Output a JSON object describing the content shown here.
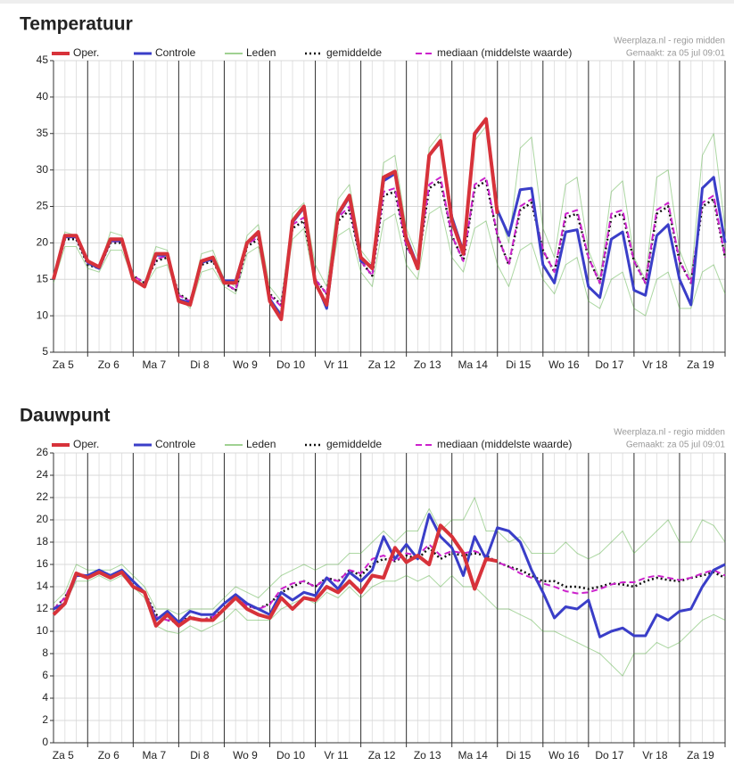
{
  "chart_data": [
    {
      "type": "line",
      "title": "Temperatuur",
      "source": "Weerplaza.nl - regio midden",
      "made": "Gemaakt: za 05 jul 09:01",
      "x": [
        0.25,
        0.5,
        0.75,
        1,
        1.25,
        1.5,
        1.75,
        2,
        2.25,
        2.5,
        2.75,
        3,
        3.25,
        3.5,
        3.75,
        4,
        4.25,
        4.5,
        4.75,
        5,
        5.25,
        5.5,
        5.75,
        6,
        6.25,
        6.5,
        6.75,
        7,
        7.25,
        7.5,
        7.75,
        8,
        8.25,
        8.5,
        8.75,
        9,
        9.25,
        9.5,
        9.75,
        10,
        10.25,
        10.5,
        10.75,
        11,
        11.25,
        11.5,
        11.75,
        12,
        12.25,
        12.5,
        12.75,
        13,
        13.25,
        13.5,
        13.75,
        14,
        14.25,
        14.5,
        14.75,
        15
      ],
      "xlim": [
        0.25,
        15
      ],
      "xticks": [
        {
          "value": 0.5,
          "label": "Za 5"
        },
        {
          "value": 1.5,
          "label": "Zo 6"
        },
        {
          "value": 2.5,
          "label": "Ma 7"
        },
        {
          "value": 3.5,
          "label": "Di 8"
        },
        {
          "value": 4.5,
          "label": "Wo 9"
        },
        {
          "value": 5.5,
          "label": "Do 10"
        },
        {
          "value": 6.5,
          "label": "Vr 11"
        },
        {
          "value": 7.5,
          "label": "Za 12"
        },
        {
          "value": 8.5,
          "label": "Zo 13"
        },
        {
          "value": 9.5,
          "label": "Ma 14"
        },
        {
          "value": 10.5,
          "label": "Di 15"
        },
        {
          "value": 11.5,
          "label": "Wo 16"
        },
        {
          "value": 12.5,
          "label": "Do 17"
        },
        {
          "value": 13.5,
          "label": "Vr 18"
        },
        {
          "value": 14.5,
          "label": "Za 19"
        }
      ],
      "ylim": [
        5,
        45
      ],
      "yticks": [
        5,
        10,
        15,
        20,
        25,
        30,
        35,
        40,
        45
      ],
      "grid": true,
      "series": [
        {
          "name": "Oper.",
          "color": "#d7323a",
          "values": [
            15,
            21,
            21,
            17.5,
            16.7,
            20.5,
            20.5,
            15,
            14,
            18.5,
            18.5,
            12,
            11.5,
            17.5,
            18,
            14.5,
            14.5,
            20,
            21.5,
            12,
            9.5,
            23,
            25,
            14.5,
            11.5,
            24,
            26.5,
            18,
            16.5,
            29,
            29.8,
            20.5,
            16.5,
            32,
            34,
            23,
            18.5,
            35,
            37,
            24,
            null,
            null,
            null,
            null,
            null,
            null,
            null,
            null,
            null,
            null,
            null,
            null,
            null,
            null,
            null,
            null,
            null,
            null,
            null,
            null
          ]
        },
        {
          "name": "Controle",
          "color": "#3a3ec8",
          "values": [
            15,
            20.8,
            20.8,
            17.3,
            16.5,
            20.3,
            20.3,
            15,
            14,
            18.3,
            18.3,
            12.2,
            11.8,
            17.3,
            17.8,
            14.8,
            14.8,
            20,
            21.3,
            12.3,
            10,
            22.8,
            24.8,
            14.8,
            11,
            23.8,
            26.3,
            17.5,
            16.8,
            28.5,
            29.5,
            20.8,
            16.8,
            32,
            33.8,
            23.5,
            18.8,
            34.8,
            37,
            24.5,
            21,
            27.3,
            27.5,
            17,
            14.5,
            21.5,
            21.8,
            14,
            12.5,
            20.5,
            21.5,
            13.5,
            12.8,
            21,
            22.5,
            15,
            11.5,
            27.5,
            29,
            20
          ]
        },
        {
          "name": "Leden",
          "color": "#4aa832",
          "members": [
            [
              15.5,
              21.5,
              21,
              17,
              16.5,
              21.5,
              21,
              15.5,
              14.5,
              19.5,
              19,
              13,
              12,
              18.5,
              19,
              15,
              14,
              21,
              22.5,
              14,
              12,
              24,
              25.5,
              17,
              14,
              26,
              28,
              19,
              17,
              31,
              32,
              22,
              18,
              33,
              35,
              24,
              19,
              34,
              36,
              25,
              20,
              33,
              34.5,
              22,
              18,
              28,
              29,
              19,
              15,
              27,
              28.5,
              18,
              15,
              29,
              30,
              19,
              15,
              32,
              35,
              22
            ],
            [
              14.5,
              19.5,
              19.5,
              16.5,
              16,
              19,
              19,
              15,
              14,
              16.5,
              17,
              12.5,
              11,
              16,
              16.5,
              14,
              13,
              18.5,
              19.5,
              12,
              10.5,
              20.5,
              22,
              14,
              12,
              21,
              22,
              16,
              14,
              23,
              24,
              17,
              15,
              24,
              25,
              18,
              16,
              22,
              23,
              17,
              14,
              19,
              20,
              15,
              13,
              17,
              18,
              12,
              11,
              15,
              16,
              11,
              10,
              15,
              16,
              11,
              11,
              16,
              17,
              13
            ]
          ]
        },
        {
          "name": "gemiddelde",
          "color": "#111111",
          "values": [
            15,
            20.5,
            20.5,
            17,
            16.5,
            20,
            20,
            15.5,
            14.5,
            17.5,
            18,
            13,
            12,
            17,
            17.5,
            14.5,
            13.5,
            19.5,
            20.5,
            13,
            11.5,
            22,
            23,
            15,
            13,
            23,
            24.5,
            17.5,
            15.5,
            26.5,
            27,
            19.5,
            17,
            27.5,
            28.5,
            21,
            17.5,
            27.5,
            28.5,
            21,
            17,
            24.5,
            25.5,
            19,
            16,
            23.5,
            24,
            18,
            14.5,
            23.5,
            24,
            17.5,
            14.5,
            24,
            25,
            17.5,
            14.5,
            25,
            26,
            18
          ]
        },
        {
          "name": "mediaan (middelste waarde)",
          "color": "#cc22cc",
          "values": [
            15,
            20.8,
            20.8,
            17.2,
            16.5,
            20.2,
            20.2,
            15.5,
            14.5,
            17.8,
            18.2,
            12.8,
            12,
            17.2,
            17.8,
            14.5,
            13.5,
            19.8,
            20.8,
            12.8,
            11.3,
            22.5,
            23.5,
            15,
            13,
            23.5,
            25,
            17.5,
            15.5,
            27,
            27.5,
            19.5,
            17,
            28,
            29,
            21,
            17.5,
            28,
            29,
            21,
            17,
            25,
            26,
            19,
            16,
            24,
            24.5,
            18,
            14.5,
            24,
            24.5,
            17.5,
            14.5,
            24.5,
            25.5,
            17.5,
            14.5,
            25.5,
            26.5,
            18
          ]
        }
      ]
    },
    {
      "type": "line",
      "title": "Dauwpunt",
      "source": "Weerplaza.nl - regio midden",
      "made": "Gemaakt: za 05 jul 09:01",
      "x": [
        0.25,
        0.5,
        0.75,
        1,
        1.25,
        1.5,
        1.75,
        2,
        2.25,
        2.5,
        2.75,
        3,
        3.25,
        3.5,
        3.75,
        4,
        4.25,
        4.5,
        4.75,
        5,
        5.25,
        5.5,
        5.75,
        6,
        6.25,
        6.5,
        6.75,
        7,
        7.25,
        7.5,
        7.75,
        8,
        8.25,
        8.5,
        8.75,
        9,
        9.25,
        9.5,
        9.75,
        10,
        10.25,
        10.5,
        10.75,
        11,
        11.25,
        11.5,
        11.75,
        12,
        12.25,
        12.5,
        12.75,
        13,
        13.25,
        13.5,
        13.75,
        14,
        14.25,
        14.5,
        14.75,
        15
      ],
      "xlim": [
        0.25,
        15
      ],
      "xticks": [
        {
          "value": 0.5,
          "label": "Za 5"
        },
        {
          "value": 1.5,
          "label": "Zo 6"
        },
        {
          "value": 2.5,
          "label": "Ma 7"
        },
        {
          "value": 3.5,
          "label": "Di 8"
        },
        {
          "value": 4.5,
          "label": "Wo 9"
        },
        {
          "value": 5.5,
          "label": "Do 10"
        },
        {
          "value": 6.5,
          "label": "Vr 11"
        },
        {
          "value": 7.5,
          "label": "Za 12"
        },
        {
          "value": 8.5,
          "label": "Zo 13"
        },
        {
          "value": 9.5,
          "label": "Ma 14"
        },
        {
          "value": 10.5,
          "label": "Di 15"
        },
        {
          "value": 11.5,
          "label": "Wo 16"
        },
        {
          "value": 12.5,
          "label": "Do 17"
        },
        {
          "value": 13.5,
          "label": "Vr 18"
        },
        {
          "value": 14.5,
          "label": "Za 19"
        }
      ],
      "ylim": [
        0,
        26
      ],
      "yticks": [
        0,
        2,
        4,
        6,
        8,
        10,
        12,
        14,
        16,
        18,
        20,
        22,
        24,
        26
      ],
      "grid": true,
      "series": [
        {
          "name": "Oper.",
          "color": "#d7323a",
          "values": [
            11.5,
            12.5,
            15.2,
            14.8,
            15.3,
            14.8,
            15.3,
            14,
            13.5,
            10.5,
            11.5,
            10.5,
            11.2,
            11,
            11,
            12,
            13,
            12,
            11.5,
            11.2,
            13,
            12,
            13,
            12.8,
            14,
            13.5,
            14.5,
            13.5,
            15,
            14.8,
            17.5,
            16.2,
            16.8,
            16,
            19.5,
            18.5,
            17,
            13.8,
            16.5,
            16.3,
            null,
            null,
            null,
            null,
            null,
            null,
            null,
            null,
            null,
            null,
            null,
            null,
            null,
            null,
            null,
            null,
            null,
            null,
            null,
            null
          ]
        },
        {
          "name": "Controle",
          "color": "#3a3ec8",
          "values": [
            12,
            12.5,
            15,
            15,
            15.5,
            15,
            15.5,
            14.5,
            13.5,
            11,
            11.8,
            10.8,
            11.8,
            11.5,
            11.5,
            12.5,
            13.3,
            12.5,
            12,
            11.5,
            13.5,
            12.8,
            13.5,
            13.2,
            14.8,
            13.8,
            15.3,
            14.5,
            15.5,
            18.5,
            16.5,
            17.8,
            16.5,
            20.5,
            18.5,
            17.5,
            15,
            18.5,
            16.5,
            19.3,
            19,
            18,
            15.5,
            13.5,
            11.2,
            12.2,
            12,
            12.8,
            9.5,
            10,
            10.3,
            9.6,
            9.6,
            11.5,
            11,
            11.8,
            12,
            14,
            15.5,
            16
          ]
        },
        {
          "name": "Leden",
          "color": "#4aa832",
          "members": [
            [
              12.5,
              13.5,
              16,
              15.5,
              15.5,
              15.5,
              16,
              15,
              14,
              12,
              12,
              11.5,
              12,
              12,
              12,
              13,
              14,
              13.5,
              13,
              14,
              15,
              15.5,
              16,
              15.5,
              16,
              16,
              17,
              17,
              18,
              19,
              18,
              19,
              19,
              21,
              19,
              20,
              20,
              22,
              19,
              19,
              18,
              18.5,
              17,
              17,
              17,
              18,
              17,
              16.5,
              17,
              18,
              19,
              17,
              18,
              19,
              20,
              18,
              18,
              20,
              19.5,
              18
            ],
            [
              11.5,
              12.5,
              14.5,
              14.5,
              15,
              14.5,
              15,
              14,
              13,
              10.5,
              10,
              9.8,
              10.5,
              10,
              10.5,
              11,
              12,
              11,
              11,
              11,
              12,
              12.5,
              13,
              12.5,
              13.5,
              13,
              14,
              13,
              14,
              14.5,
              14.5,
              15,
              14.5,
              15,
              14,
              15,
              14,
              14,
              13,
              12,
              12,
              11.5,
              11,
              10,
              10,
              9.5,
              9,
              8.5,
              8,
              7,
              6,
              8,
              8,
              9,
              8.5,
              9,
              10,
              11,
              11.5,
              11
            ]
          ]
        },
        {
          "name": "gemiddelde",
          "color": "#111111",
          "values": [
            12,
            13,
            15,
            15,
            15.2,
            15,
            15.3,
            14.5,
            13.5,
            11.5,
            11,
            10.8,
            11.3,
            11,
            11.3,
            12,
            13,
            12.3,
            12,
            12.5,
            13.5,
            14,
            14.5,
            14,
            14.8,
            14.5,
            15.5,
            15,
            16,
            16.5,
            16.3,
            16.8,
            16.5,
            17.5,
            16.5,
            17,
            16.8,
            17,
            16.8,
            16.2,
            15.8,
            15.5,
            15,
            14.5,
            14.5,
            14,
            14,
            13.8,
            14,
            14.3,
            14.2,
            14,
            14.5,
            14.8,
            14.6,
            14.5,
            14.8,
            15,
            15.3,
            14.8
          ]
        },
        {
          "name": "mediaan (middelste waarde)",
          "color": "#cc22cc",
          "values": [
            12,
            13,
            15.2,
            15,
            15.3,
            15,
            15.4,
            14.5,
            13.5,
            11.3,
            11,
            10.8,
            11.2,
            11,
            11.3,
            12,
            13,
            12.3,
            12,
            12.4,
            13.8,
            14.3,
            14.5,
            14,
            14.8,
            14.5,
            15.5,
            15.2,
            16.5,
            16.8,
            16.3,
            17,
            16.8,
            17.8,
            16.8,
            17.2,
            17,
            17.2,
            16.8,
            16.2,
            15.8,
            15.2,
            14.8,
            14.3,
            14,
            13.6,
            13.4,
            13.5,
            13.8,
            14.2,
            14.4,
            14.4,
            14.8,
            15,
            14.8,
            14.6,
            14.8,
            15.2,
            15.5,
            15
          ]
        }
      ]
    }
  ]
}
